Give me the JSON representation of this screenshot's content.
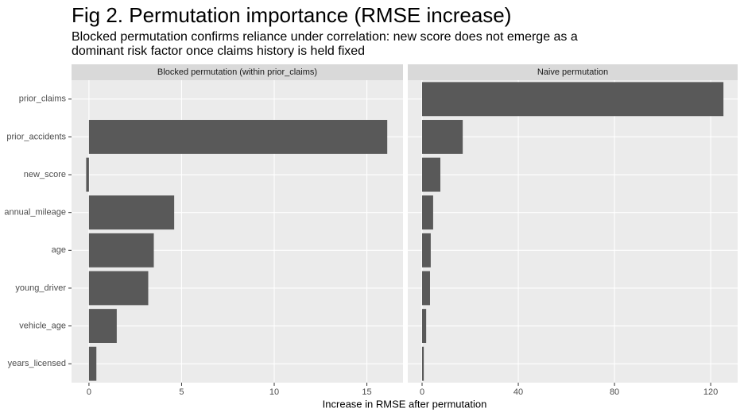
{
  "title": "Fig 2. Permutation importance (RMSE increase)",
  "subtitle": [
    "Blocked permutation confirms reliance under correlation: new score does not emerge as a",
    "dominant risk factor once claims history is held fixed"
  ],
  "x_axis_label": "Increase in RMSE after permutation",
  "chart_data": [
    {
      "type": "bar",
      "orientation": "horizontal",
      "panel_title": "Blocked permutation (within prior_claims)",
      "categories": [
        "prior_claims",
        "prior_accidents",
        "new_score",
        "annual_mileage",
        "age",
        "young_driver",
        "vehicle_age",
        "years_licensed"
      ],
      "values": [
        0,
        16.1,
        -0.15,
        4.6,
        3.5,
        3.2,
        1.5,
        0.4
      ],
      "color": "#595959",
      "xlim": [
        -0.94,
        16.95
      ],
      "xticks": [
        0,
        5,
        10,
        15
      ],
      "grid": true
    },
    {
      "type": "bar",
      "orientation": "horizontal",
      "panel_title": "Naive permutation",
      "values": [
        125.3,
        16.9,
        7.6,
        4.6,
        3.6,
        3.3,
        1.7,
        0.7
      ],
      "color": "#595959",
      "xlim": [
        -5.95,
        131.2
      ],
      "xticks": [
        0,
        40,
        80,
        120
      ],
      "grid": true
    }
  ]
}
